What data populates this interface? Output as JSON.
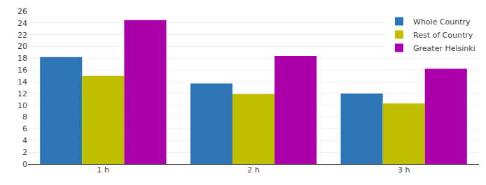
{
  "chart_data": {
    "type": "bar",
    "categories": [
      "1 h",
      "2 h",
      "3 h"
    ],
    "series": [
      {
        "name": "Whole Country",
        "values": [
          18.2,
          13.7,
          12.0
        ],
        "color": "#2E75B6"
      },
      {
        "name": "Rest of Country",
        "values": [
          15.0,
          11.9,
          10.3
        ],
        "color": "#BFBF00"
      },
      {
        "name": "Greater Helsinki",
        "values": [
          24.5,
          18.4,
          16.2
        ],
        "color": "#AA00AA"
      }
    ],
    "ylim": [
      0,
      26
    ],
    "yticks": [
      0,
      2,
      4,
      6,
      8,
      10,
      12,
      14,
      16,
      18,
      20,
      22,
      24,
      26
    ],
    "grid": true,
    "legend": "upper right"
  }
}
